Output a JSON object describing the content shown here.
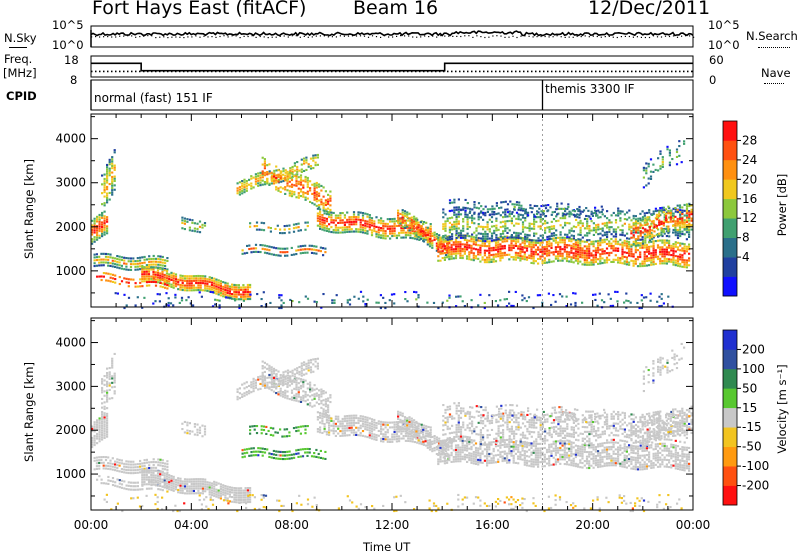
{
  "header": {
    "station": "Fort Hays East (fitACF)",
    "beam": "Beam 16",
    "date": "12/Dec/2011"
  },
  "colors": {
    "power_scale": [
      "#1010ff",
      "#2040a0",
      "#2a6f8a",
      "#40a070",
      "#8cc83c",
      "#f0c81e",
      "#ff9010",
      "#ff5010",
      "#ff1010"
    ],
    "velocity_scale": [
      "#ff1010",
      "#ff5010",
      "#ff9a10",
      "#f2c420",
      "#c8c8c8",
      "#58c830",
      "#308a50",
      "#3050a0",
      "#2030d0"
    ]
  },
  "chart_data": [
    {
      "type": "line",
      "panel": "noise",
      "left_label": "N.Sky",
      "right_label": "N.Search",
      "left_ticks": [
        "10^5",
        "10^0"
      ],
      "right_ticks": [
        "10^5",
        "10^0"
      ],
      "series": [
        {
          "name": "N.Sky"
        },
        {
          "name": "N.Search"
        }
      ]
    },
    {
      "type": "line",
      "panel": "frequency",
      "left_label_top": "Freq.",
      "left_label_bottom": "[MHz]",
      "right_label": "Nave",
      "left_ticks": [
        "18",
        "8"
      ],
      "right_ticks": [
        "60",
        "0"
      ],
      "left_range": [
        8,
        18
      ],
      "right_range": [
        0,
        60
      ],
      "freq_steps": [
        {
          "t": 0.0,
          "v": 14.5
        },
        {
          "t": 2.0,
          "v": 11.0
        },
        {
          "t": 14.1,
          "v": 14.5
        },
        {
          "t": 24.0,
          "v": 14.5
        }
      ],
      "nave_level": 16
    },
    {
      "type": "table",
      "panel": "cpid",
      "label": "CPID",
      "segments": [
        {
          "start_h": 0.0,
          "text": "normal (fast) 151 IF"
        },
        {
          "start_h": 18.0,
          "text": "themis 3300 IF"
        }
      ]
    },
    {
      "type": "heatmap",
      "panel": "power",
      "ylabel": "Slant Range [km]",
      "y_ticks": [
        1000,
        2000,
        3000,
        4000
      ],
      "ylim": [
        180,
        4560
      ],
      "colorbar_label": "Power [dB]",
      "colorbar_ticks": [
        "28",
        "24",
        "20",
        "16",
        "12",
        "8",
        "4"
      ],
      "xlim_hours": [
        0,
        24
      ]
    },
    {
      "type": "heatmap",
      "panel": "velocity",
      "ylabel": "Slant Range [km]",
      "y_ticks": [
        1000,
        2000,
        3000,
        4000
      ],
      "ylim": [
        180,
        4560
      ],
      "colorbar_label": "Velocity [m s⁻¹]",
      "colorbar_ticks": [
        "200",
        "100",
        "50",
        "15",
        "-15",
        "-50",
        "-100",
        "-200"
      ],
      "xlabel": "Time UT",
      "x_ticks": [
        "00:00",
        "04:00",
        "08:00",
        "12:00",
        "16:00",
        "20:00",
        "00:00"
      ],
      "xlim_hours": [
        0,
        24
      ]
    }
  ]
}
